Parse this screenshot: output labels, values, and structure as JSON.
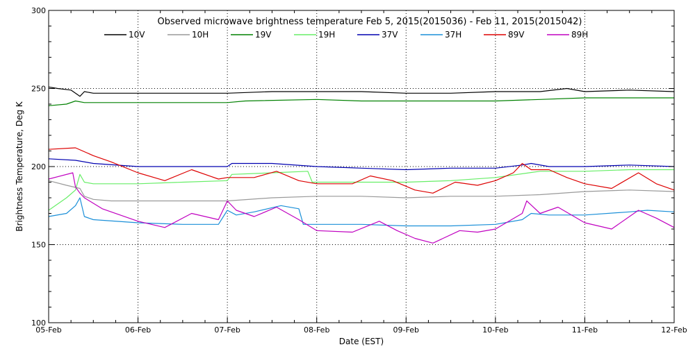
{
  "chart_data": {
    "type": "line",
    "title": "Observed microwave brightness temperature Feb  5, 2015(2015036) - Feb 11, 2015(2015042)",
    "xlabel": "Date (EST)",
    "ylabel": "Brightness Temperature, Deg K",
    "ylim": [
      100,
      300
    ],
    "xlim": [
      0,
      7
    ],
    "x_ticks": [
      {
        "value": 0,
        "label": "05-Feb"
      },
      {
        "value": 1,
        "label": "06-Feb"
      },
      {
        "value": 2,
        "label": "07-Feb"
      },
      {
        "value": 3,
        "label": "08-Feb"
      },
      {
        "value": 4,
        "label": "09-Feb"
      },
      {
        "value": 5,
        "label": "10-Feb"
      },
      {
        "value": 6,
        "label": "11-Feb"
      },
      {
        "value": 7,
        "label": "12-Feb"
      }
    ],
    "y_ticks": [
      {
        "value": 100,
        "label": "100"
      },
      {
        "value": 150,
        "label": "150"
      },
      {
        "value": 200,
        "label": "200"
      },
      {
        "value": 250,
        "label": "250"
      },
      {
        "value": 300,
        "label": "300"
      }
    ],
    "grid": "dotted at labeled ticks",
    "legend_position": "top",
    "series": [
      {
        "name": "10V",
        "color": "#000000",
        "x": [
          0,
          0.1,
          0.25,
          0.35,
          0.4,
          0.5,
          0.7,
          1.0,
          1.5,
          2.0,
          2.5,
          3.0,
          3.5,
          4.0,
          4.5,
          5.0,
          5.5,
          5.8,
          6.0,
          6.5,
          7.0
        ],
        "y": [
          251,
          250,
          249,
          245,
          248,
          247,
          247,
          247,
          247,
          247,
          248,
          248,
          248,
          247,
          247,
          248,
          248,
          250,
          248,
          249,
          248
        ]
      },
      {
        "name": "10H",
        "color": "#999999",
        "x": [
          0,
          0.2,
          0.35,
          0.4,
          0.5,
          0.7,
          1.0,
          1.5,
          2.0,
          2.5,
          3.0,
          3.5,
          4.0,
          4.5,
          5.0,
          5.5,
          6.0,
          6.5,
          7.0
        ],
        "y": [
          191,
          188,
          186,
          181,
          179,
          178,
          178,
          178,
          178,
          180,
          181,
          181,
          180,
          181,
          181,
          182,
          184,
          185,
          184
        ]
      },
      {
        "name": "19V",
        "color": "#008000",
        "x": [
          0,
          0.2,
          0.3,
          0.4,
          0.5,
          1.0,
          2.0,
          2.2,
          3.0,
          3.5,
          4.0,
          5.0,
          5.5,
          6.0,
          7.0
        ],
        "y": [
          239,
          240,
          242,
          241,
          241,
          241,
          241,
          242,
          243,
          242,
          242,
          242,
          243,
          244,
          244
        ]
      },
      {
        "name": "19H",
        "color": "#66ee66",
        "x": [
          0,
          0.2,
          0.3,
          0.35,
          0.4,
          0.5,
          1.0,
          1.5,
          2.0,
          2.05,
          2.5,
          2.9,
          2.95,
          3.5,
          4.0,
          4.5,
          5.0,
          5.5,
          6.0,
          6.5,
          7.0
        ],
        "y": [
          172,
          180,
          185,
          195,
          190,
          189,
          189,
          190,
          191,
          195,
          196,
          197,
          190,
          190,
          190,
          191,
          193,
          197,
          197,
          198,
          198
        ]
      },
      {
        "name": "37V",
        "color": "#0000b0",
        "x": [
          0,
          0.3,
          0.5,
          1.0,
          1.5,
          2.0,
          2.05,
          2.5,
          3.0,
          3.5,
          4.0,
          4.5,
          5.0,
          5.3,
          5.4,
          5.6,
          6.0,
          6.5,
          7.0
        ],
        "y": [
          205,
          204,
          202,
          200,
          200,
          200,
          202,
          202,
          200,
          199,
          198,
          199,
          199,
          201,
          202,
          200,
          200,
          201,
          200
        ]
      },
      {
        "name": "37H",
        "color": "#1a8fd8",
        "x": [
          0,
          0.2,
          0.3,
          0.35,
          0.4,
          0.5,
          1.0,
          1.5,
          1.9,
          2.0,
          2.1,
          2.3,
          2.6,
          2.8,
          2.85,
          3.0,
          3.5,
          4.0,
          4.5,
          5.0,
          5.3,
          5.4,
          5.6,
          6.0,
          6.5,
          6.7,
          7.0
        ],
        "y": [
          168,
          170,
          175,
          180,
          168,
          166,
          164,
          163,
          163,
          172,
          169,
          171,
          175,
          173,
          163,
          163,
          163,
          162,
          162,
          163,
          166,
          170,
          169,
          169,
          171,
          172,
          171
        ]
      },
      {
        "name": "89V",
        "color": "#dd0000",
        "x": [
          0,
          0.3,
          0.5,
          0.7,
          1.0,
          1.3,
          1.6,
          1.9,
          2.0,
          2.3,
          2.55,
          2.8,
          3.0,
          3.4,
          3.6,
          3.85,
          4.1,
          4.3,
          4.55,
          4.8,
          5.0,
          5.2,
          5.3,
          5.4,
          5.6,
          5.8,
          6.0,
          6.3,
          6.6,
          6.8,
          7.0
        ],
        "y": [
          211,
          212,
          207,
          203,
          196,
          191,
          198,
          192,
          193,
          193,
          197,
          191,
          189,
          189,
          194,
          191,
          185,
          183,
          190,
          188,
          191,
          196,
          202,
          198,
          198,
          193,
          189,
          186,
          196,
          189,
          185
        ]
      },
      {
        "name": "89H",
        "color": "#c000c0",
        "x": [
          0,
          0.27,
          0.3,
          0.35,
          0.4,
          0.6,
          1.0,
          1.3,
          1.6,
          1.9,
          2.0,
          2.1,
          2.3,
          2.55,
          2.8,
          3.0,
          3.4,
          3.7,
          3.9,
          4.1,
          4.3,
          4.6,
          4.8,
          5.0,
          5.3,
          5.35,
          5.5,
          5.7,
          6.0,
          6.3,
          6.6,
          6.8,
          7.0
        ],
        "y": [
          192,
          196,
          187,
          183,
          180,
          173,
          165,
          161,
          170,
          166,
          178,
          172,
          168,
          174,
          166,
          159,
          158,
          165,
          159,
          154,
          151,
          159,
          158,
          160,
          170,
          178,
          170,
          174,
          164,
          160,
          172,
          167,
          161
        ]
      }
    ]
  }
}
